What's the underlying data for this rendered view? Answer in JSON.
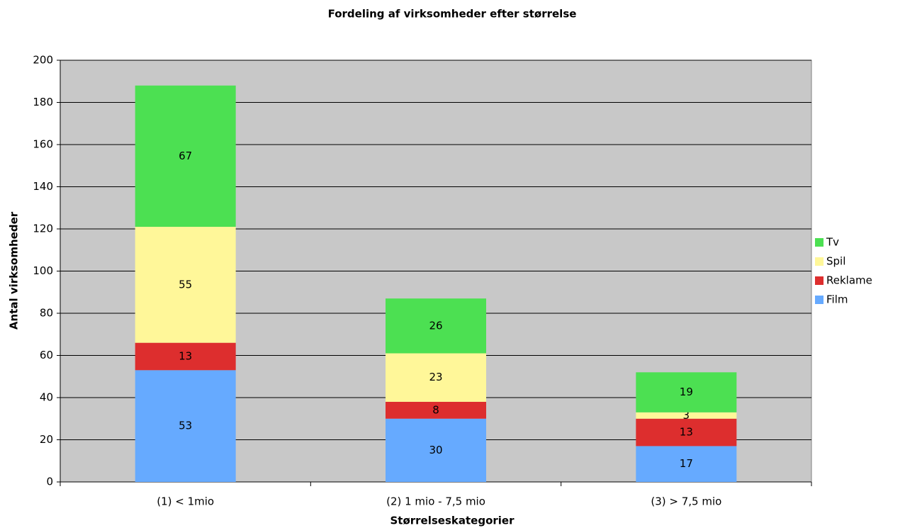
{
  "chart_data": {
    "type": "stacked_bar",
    "title": "Fordeling af virksomheder efter størrelse",
    "x_label": "Størrelseskategorier",
    "y_label": "Antal virksomheder",
    "categories": [
      "(1) < 1mio",
      "(2) 1 mio - 7,5 mio",
      "(3) > 7,5 mio"
    ],
    "series": [
      {
        "name": "Film",
        "color": "#66aaff",
        "values": [
          53,
          30,
          17
        ]
      },
      {
        "name": "Reklame",
        "color": "#dd2e2e",
        "values": [
          13,
          8,
          13
        ]
      },
      {
        "name": "Spil",
        "color": "#fff799",
        "values": [
          55,
          23,
          3
        ]
      },
      {
        "name": "Tv",
        "color": "#4ce052",
        "values": [
          67,
          26,
          19
        ]
      }
    ],
    "ylim": [
      0,
      200
    ],
    "yticks": [
      0,
      20,
      40,
      60,
      80,
      100,
      120,
      140,
      160,
      180,
      200
    ],
    "grid": true,
    "legend": "right"
  }
}
